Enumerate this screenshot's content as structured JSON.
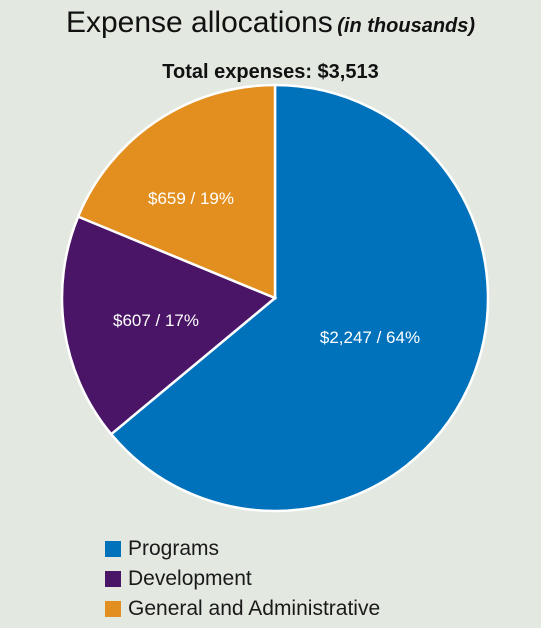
{
  "chart_data": {
    "type": "pie",
    "title": "Expense allocations",
    "title_note": "(in thousands)",
    "subtitle": "Total expenses: $3,513",
    "slices": [
      {
        "name": "Programs",
        "value": 2247,
        "label": "$2,247 / 64%",
        "color": "#0072bc"
      },
      {
        "name": "Development",
        "value": 607,
        "label": "$607 / 17%",
        "color": "#4a1567"
      },
      {
        "name": "General and Administrative",
        "value": 659,
        "label": "$659 / 19%",
        "color": "#e28f1f"
      }
    ],
    "legend_position": "bottom"
  }
}
